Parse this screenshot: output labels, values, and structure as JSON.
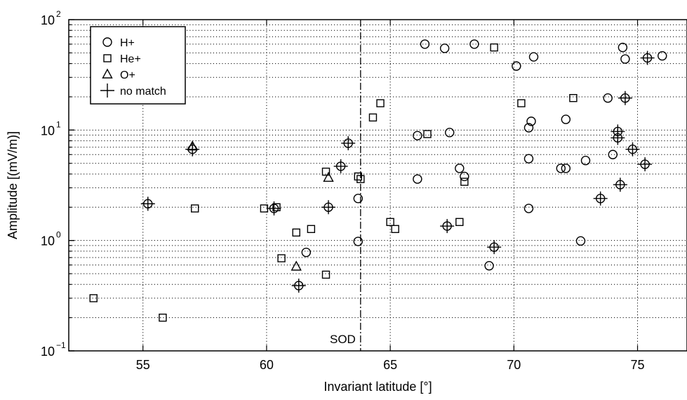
{
  "chart_data": {
    "type": "scatter",
    "xlabel": "Invariant latitude [°]",
    "ylabel": "Amplitude [(mV/m)]",
    "xlim": [
      52,
      77
    ],
    "ylim": [
      0.1,
      100
    ],
    "yscale": "log",
    "grid": true,
    "grid_style": "dotted",
    "legend_position": "top-left",
    "x_ticks": [
      {
        "value": 55,
        "label": "55"
      },
      {
        "value": 60,
        "label": "60"
      },
      {
        "value": 65,
        "label": "65"
      },
      {
        "value": 70,
        "label": "70"
      },
      {
        "value": 75,
        "label": "75"
      }
    ],
    "y_ticks": [
      {
        "value": 0.1,
        "base": "10",
        "exp": "−1"
      },
      {
        "value": 1,
        "base": "10",
        "exp": "0"
      },
      {
        "value": 10,
        "base": "10",
        "exp": "1"
      },
      {
        "value": 100,
        "base": "10",
        "exp": "2"
      }
    ],
    "vline": {
      "x": 63.8,
      "label": "SOD"
    },
    "series": [
      {
        "name": "H+",
        "marker": "circle",
        "points": [
          [
            66.4,
            60
          ],
          [
            67.2,
            55
          ],
          [
            68.4,
            60
          ],
          [
            70.1,
            38
          ],
          [
            70.8,
            46
          ],
          [
            74.4,
            56
          ],
          [
            74.5,
            44
          ],
          [
            76.0,
            47
          ],
          [
            73.8,
            19.5
          ],
          [
            70.7,
            12
          ],
          [
            70.6,
            10.5
          ],
          [
            72.1,
            12.5
          ],
          [
            66.1,
            8.9
          ],
          [
            67.4,
            9.5
          ],
          [
            70.6,
            5.5
          ],
          [
            71.9,
            4.5
          ],
          [
            72.1,
            4.5
          ],
          [
            72.9,
            5.3
          ],
          [
            74.0,
            6.0
          ],
          [
            66.1,
            3.6
          ],
          [
            67.8,
            4.5
          ],
          [
            68.0,
            3.8
          ],
          [
            63.7,
            2.4
          ],
          [
            70.6,
            1.95
          ],
          [
            63.7,
            0.98
          ],
          [
            61.6,
            0.78
          ],
          [
            69.0,
            0.59
          ],
          [
            72.7,
            0.99
          ]
        ]
      },
      {
        "name": "He+",
        "marker": "square",
        "points": [
          [
            69.2,
            56
          ],
          [
            64.6,
            17.5
          ],
          [
            64.3,
            13
          ],
          [
            66.5,
            9.2
          ],
          [
            70.3,
            17.5
          ],
          [
            72.4,
            19.5
          ],
          [
            62.4,
            4.2
          ],
          [
            63.7,
            3.8
          ],
          [
            63.8,
            3.6
          ],
          [
            68.0,
            3.4
          ],
          [
            57.1,
            1.95
          ],
          [
            59.9,
            1.95
          ],
          [
            60.4,
            2.0
          ],
          [
            61.2,
            1.18
          ],
          [
            61.8,
            1.27
          ],
          [
            65.0,
            1.47
          ],
          [
            65.2,
            1.27
          ],
          [
            67.8,
            1.47
          ],
          [
            60.6,
            0.69
          ],
          [
            62.4,
            0.49
          ],
          [
            53.0,
            0.3
          ],
          [
            55.8,
            0.2
          ]
        ]
      },
      {
        "name": "O+",
        "marker": "triangle",
        "points": [
          [
            57.0,
            7.1
          ],
          [
            62.5,
            3.7
          ],
          [
            61.2,
            0.58
          ]
        ]
      },
      {
        "name": "no match",
        "marker": "plus",
        "points": [
          [
            55.2,
            2.15
          ],
          [
            57.0,
            6.7
          ],
          [
            60.3,
            1.95
          ],
          [
            61.3,
            0.39
          ],
          [
            62.5,
            2.0
          ],
          [
            63.0,
            4.7
          ],
          [
            63.3,
            7.6
          ],
          [
            67.3,
            1.35
          ],
          [
            69.2,
            0.87
          ],
          [
            73.5,
            2.4
          ],
          [
            74.2,
            9.7
          ],
          [
            74.2,
            8.5
          ],
          [
            74.3,
            3.2
          ],
          [
            74.5,
            19.5
          ],
          [
            74.8,
            6.7
          ],
          [
            75.3,
            4.9
          ],
          [
            75.4,
            45
          ]
        ]
      }
    ]
  }
}
